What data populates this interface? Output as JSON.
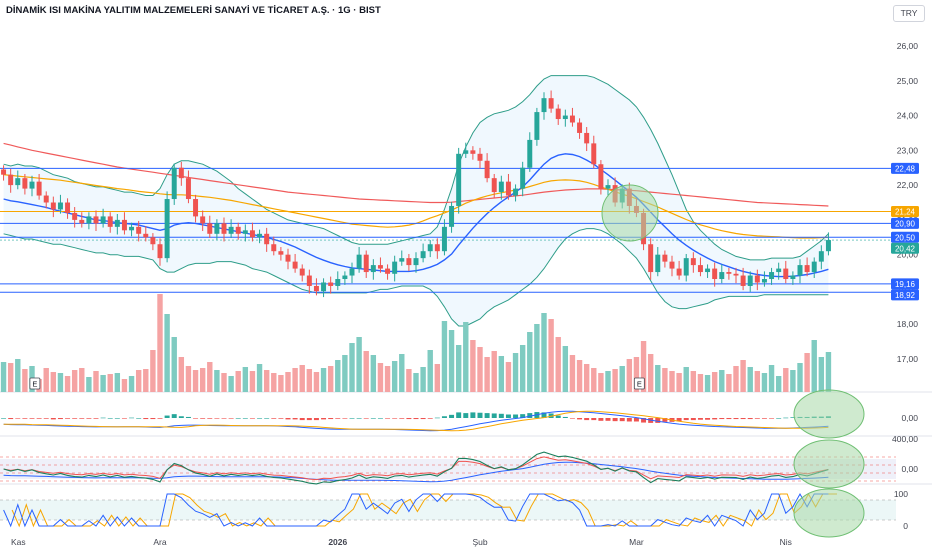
{
  "header": {
    "title": "DİNAMİK ISI MAKİNA YALITIM MALZEMELERİ SANAYİ VE TİCARET A.Ş. · 1G · BIST",
    "currency": "TRY"
  },
  "chart_data": [
    {
      "type": "candlestick",
      "title": "DİNAMİK ISI MAKİNA YALITIM MALZEMELERİ SANAYİ VE TİCARET A.Ş. · 1G · BIST",
      "currency": "TRY",
      "ylim": [
        16.5,
        26.5
      ],
      "y_ticks": [
        "26,00",
        "25,00",
        "24,00",
        "23,00",
        "22,00",
        "21,00",
        "20,00",
        "19,00",
        "18,00",
        "17,00"
      ],
      "y_tick_values": [
        26,
        25,
        24,
        23,
        22,
        21,
        20,
        19,
        18,
        17
      ],
      "x_labels": [
        "Kas",
        "Ara",
        "2026",
        "Şub",
        "Mar",
        "Nis"
      ],
      "horizontal_levels": [
        {
          "value": 22.48,
          "label": "22,48",
          "color": "#2962ff"
        },
        {
          "value": 21.24,
          "label": "21,24",
          "color": "#f7a600"
        },
        {
          "value": 20.9,
          "label": "20,90",
          "color": "#2962ff"
        },
        {
          "value": 20.5,
          "label": "20,50",
          "color": "#2962ff"
        },
        {
          "value": 20.42,
          "label": "20,42",
          "color": "#26a69a"
        },
        {
          "value": 19.16,
          "label": "19,16",
          "color": "#2962ff"
        },
        {
          "value": 18.92,
          "label": "18,92",
          "color": "#2962ff"
        }
      ],
      "event_markers": [
        "E",
        "E"
      ],
      "close": [
        22.3,
        22.0,
        22.2,
        21.9,
        22.1,
        21.7,
        21.5,
        21.3,
        21.5,
        21.2,
        21.0,
        20.9,
        21.1,
        20.9,
        21.1,
        20.8,
        21.0,
        20.7,
        20.8,
        20.6,
        20.5,
        20.3,
        19.9,
        21.6,
        22.5,
        22.2,
        21.6,
        21.1,
        20.9,
        20.6,
        20.9,
        20.6,
        20.8,
        20.6,
        20.7,
        20.5,
        20.6,
        20.3,
        20.1,
        20.0,
        19.8,
        19.6,
        19.4,
        19.1,
        18.95,
        19.2,
        19.1,
        19.3,
        19.4,
        19.6,
        20.0,
        19.5,
        19.7,
        19.6,
        19.45,
        19.8,
        19.9,
        19.7,
        19.9,
        20.1,
        20.3,
        20.1,
        20.8,
        21.4,
        22.9,
        23.0,
        22.9,
        22.7,
        22.2,
        21.8,
        22.1,
        21.7,
        21.9,
        22.5,
        23.3,
        24.1,
        24.5,
        24.2,
        23.9,
        24.0,
        23.8,
        23.5,
        23.2,
        22.6,
        21.9,
        22.0,
        21.5,
        21.9,
        21.4,
        21.2,
        20.3,
        19.5,
        20.0,
        19.8,
        19.6,
        19.4,
        19.9,
        19.7,
        19.5,
        19.6,
        19.3,
        19.5,
        19.45,
        19.4,
        19.1,
        19.4,
        19.2,
        19.3,
        19.5,
        19.6,
        19.3,
        19.4,
        19.7,
        19.5,
        19.8,
        20.1,
        20.42
      ],
      "volume": [
        0.3,
        0.29,
        0.33,
        0.23,
        0.26,
        0.13,
        0.24,
        0.2,
        0.19,
        0.16,
        0.22,
        0.24,
        0.15,
        0.21,
        0.17,
        0.18,
        0.19,
        0.13,
        0.16,
        0.22,
        0.23,
        0.42,
        0.98,
        0.78,
        0.55,
        0.35,
        0.26,
        0.22,
        0.24,
        0.3,
        0.22,
        0.19,
        0.16,
        0.21,
        0.25,
        0.21,
        0.28,
        0.22,
        0.19,
        0.17,
        0.2,
        0.24,
        0.27,
        0.23,
        0.2,
        0.24,
        0.26,
        0.32,
        0.37,
        0.49,
        0.55,
        0.41,
        0.37,
        0.29,
        0.26,
        0.31,
        0.38,
        0.23,
        0.19,
        0.25,
        0.42,
        0.28,
        0.71,
        0.62,
        0.47,
        0.7,
        0.52,
        0.45,
        0.35,
        0.41,
        0.36,
        0.3,
        0.39,
        0.47,
        0.6,
        0.68,
        0.79,
        0.73,
        0.55,
        0.46,
        0.37,
        0.32,
        0.28,
        0.24,
        0.19,
        0.21,
        0.23,
        0.26,
        0.33,
        0.35,
        0.51,
        0.38,
        0.27,
        0.24,
        0.21,
        0.19,
        0.25,
        0.21,
        0.18,
        0.17,
        0.2,
        0.22,
        0.18,
        0.26,
        0.32,
        0.25,
        0.21,
        0.19,
        0.27,
        0.16,
        0.24,
        0.22,
        0.29,
        0.39,
        0.52,
        0.35,
        0.4
      ],
      "ma_slow": [
        23.2,
        23.15,
        23.1,
        23.05,
        23.0,
        22.96,
        22.92,
        22.88,
        22.84,
        22.8,
        22.76,
        22.72,
        22.68,
        22.64,
        22.6,
        22.56,
        22.52,
        22.49,
        22.46,
        22.43,
        22.4,
        22.37,
        22.34,
        22.31,
        22.28,
        22.25,
        22.22,
        22.19,
        22.16,
        22.13,
        22.1,
        22.07,
        22.04,
        22.01,
        21.98,
        21.95,
        21.92,
        21.89,
        21.86,
        21.83,
        21.8,
        21.78,
        21.76,
        21.74,
        21.72,
        21.7,
        21.68,
        21.66,
        21.64,
        21.62,
        21.6,
        21.59,
        21.58,
        21.57,
        21.56,
        21.55,
        21.54,
        21.53,
        21.52,
        21.51,
        21.5,
        21.5,
        21.5,
        21.51,
        21.53,
        21.55,
        21.57,
        21.59,
        21.61,
        21.63,
        21.65,
        21.67,
        21.69,
        21.71,
        21.74,
        21.77,
        21.8,
        21.82,
        21.84,
        21.86,
        21.87,
        21.88,
        21.89,
        21.89,
        21.89,
        21.88,
        21.87,
        21.86,
        21.85,
        21.84,
        21.82,
        21.8,
        21.78,
        21.76,
        21.74,
        21.72,
        21.7,
        21.68,
        21.66,
        21.64,
        21.62,
        21.6,
        21.58,
        21.56,
        21.54,
        21.52,
        21.5,
        21.49,
        21.48,
        21.47,
        21.46,
        21.45,
        21.44,
        21.43,
        21.42,
        21.41,
        21.4
      ],
      "ma_mid": [
        22.3,
        22.28,
        22.26,
        22.24,
        22.22,
        22.2,
        22.18,
        22.16,
        22.14,
        22.11,
        22.08,
        22.05,
        22.02,
        21.99,
        21.96,
        21.93,
        21.9,
        21.88,
        21.85,
        21.82,
        21.8,
        21.78,
        21.75,
        21.73,
        21.72,
        21.72,
        21.71,
        21.69,
        21.67,
        21.65,
        21.62,
        21.59,
        21.56,
        21.52,
        21.48,
        21.44,
        21.4,
        21.36,
        21.32,
        21.28,
        21.24,
        21.2,
        21.16,
        21.12,
        21.08,
        21.04,
        21.0,
        20.96,
        20.92,
        20.88,
        20.86,
        20.84,
        20.82,
        20.8,
        20.79,
        20.8,
        20.82,
        20.85,
        20.9,
        20.97,
        21.05,
        21.12,
        21.2,
        21.28,
        21.38,
        21.48,
        21.56,
        21.63,
        21.69,
        21.74,
        21.78,
        21.82,
        21.86,
        21.9,
        21.96,
        22.02,
        22.08,
        22.12,
        22.14,
        22.15,
        22.14,
        22.12,
        22.08,
        22.02,
        21.95,
        21.88,
        21.81,
        21.74,
        21.68,
        21.61,
        21.53,
        21.45,
        21.37,
        21.28,
        21.19,
        21.1,
        21.01,
        20.93,
        20.86,
        20.8,
        20.74,
        20.69,
        20.65,
        20.61,
        20.58,
        20.56,
        20.54,
        20.53,
        20.52,
        20.51,
        20.5,
        20.49,
        20.48,
        20.48,
        20.48,
        20.49,
        20.5
      ],
      "ma_fast": [
        21.6,
        21.55,
        21.52,
        21.48,
        21.44,
        21.4,
        21.36,
        21.3,
        21.25,
        21.2,
        21.15,
        21.1,
        21.05,
        21.0,
        20.98,
        20.95,
        20.92,
        20.9,
        20.88,
        20.85,
        20.8,
        20.75,
        20.7,
        20.75,
        20.85,
        20.9,
        20.92,
        20.9,
        20.86,
        20.82,
        20.78,
        20.74,
        20.7,
        20.66,
        20.62,
        20.58,
        20.54,
        20.5,
        20.44,
        20.38,
        20.3,
        20.22,
        20.12,
        20.02,
        19.92,
        19.84,
        19.77,
        19.71,
        19.66,
        19.62,
        19.6,
        19.58,
        19.56,
        19.54,
        19.52,
        19.52,
        19.52,
        19.52,
        19.54,
        19.58,
        19.64,
        19.72,
        19.85,
        20.02,
        20.28,
        20.52,
        20.76,
        20.98,
        21.18,
        21.36,
        21.52,
        21.66,
        21.8,
        21.95,
        22.15,
        22.38,
        22.6,
        22.77,
        22.86,
        22.9,
        22.88,
        22.82,
        22.72,
        22.6,
        22.45,
        22.3,
        22.14,
        21.98,
        21.82,
        21.65,
        21.44,
        21.22,
        21.0,
        20.8,
        20.6,
        20.42,
        20.27,
        20.13,
        20.01,
        19.9,
        19.8,
        19.72,
        19.65,
        19.58,
        19.52,
        19.47,
        19.43,
        19.4,
        19.38,
        19.37,
        19.37,
        19.38,
        19.4,
        19.43,
        19.47,
        19.52,
        19.58
      ],
      "bb_upper": [
        22.6,
        22.55,
        22.6,
        22.55,
        22.55,
        22.5,
        22.4,
        22.3,
        22.25,
        22.2,
        22.1,
        22.05,
        22.0,
        21.95,
        21.95,
        21.9,
        21.85,
        21.8,
        21.8,
        21.75,
        21.7,
        21.7,
        21.9,
        22.3,
        22.6,
        22.7,
        22.7,
        22.65,
        22.6,
        22.5,
        22.4,
        22.25,
        22.1,
        21.9,
        21.75,
        21.6,
        21.45,
        21.3,
        21.2,
        21.1,
        21.0,
        20.95,
        20.9,
        20.85,
        20.8,
        20.75,
        20.65,
        20.55,
        20.45,
        20.35,
        20.3,
        20.3,
        20.3,
        20.3,
        20.3,
        20.35,
        20.4,
        20.45,
        20.5,
        20.55,
        20.6,
        20.8,
        21.3,
        21.9,
        22.6,
        23.1,
        23.5,
        23.8,
        23.95,
        24.05,
        24.1,
        24.15,
        24.25,
        24.4,
        24.6,
        24.85,
        25.05,
        25.15,
        25.15,
        25.15,
        25.15,
        25.15,
        25.15,
        25.1,
        25.0,
        24.9,
        24.75,
        24.6,
        24.45,
        24.25,
        23.95,
        23.6,
        23.2,
        22.75,
        22.3,
        21.8,
        21.3,
        20.95,
        20.7,
        20.5,
        20.3,
        20.15,
        20.05,
        19.95,
        19.9,
        19.85,
        19.85,
        19.85,
        19.9,
        19.9,
        19.9,
        19.9,
        19.95,
        20.1,
        20.25,
        20.4,
        20.6
      ],
      "bb_lower": [
        20.6,
        20.55,
        20.5,
        20.45,
        20.45,
        20.4,
        20.35,
        20.3,
        20.3,
        20.25,
        20.2,
        20.15,
        20.1,
        20.05,
        20.05,
        20.0,
        20.0,
        19.95,
        19.95,
        19.95,
        19.9,
        19.85,
        19.6,
        19.5,
        19.5,
        19.6,
        19.7,
        19.75,
        19.75,
        19.75,
        19.8,
        19.8,
        19.8,
        19.75,
        19.7,
        19.6,
        19.55,
        19.5,
        19.4,
        19.3,
        19.2,
        19.1,
        19.0,
        18.95,
        18.9,
        18.9,
        18.9,
        18.9,
        18.9,
        18.9,
        18.9,
        18.9,
        18.95,
        19.0,
        19.0,
        19.05,
        19.1,
        19.1,
        19.1,
        19.1,
        19.0,
        18.8,
        18.5,
        18.15,
        17.95,
        17.95,
        18.05,
        18.15,
        18.35,
        18.5,
        18.6,
        18.7,
        18.85,
        19.0,
        19.15,
        19.35,
        19.6,
        19.9,
        20.2,
        20.45,
        20.6,
        20.7,
        20.75,
        20.75,
        20.7,
        20.6,
        20.45,
        20.3,
        20.1,
        19.9,
        19.6,
        19.25,
        18.9,
        18.65,
        18.5,
        18.45,
        18.45,
        18.5,
        18.55,
        18.6,
        18.7,
        18.75,
        18.8,
        18.8,
        18.8,
        18.8,
        18.8,
        18.85,
        18.85,
        18.85,
        18.85,
        18.85,
        18.85,
        18.85,
        18.85,
        18.85,
        18.85
      ]
    },
    {
      "type": "histogram-line",
      "name": "momentum",
      "tick_labels": [
        "0,00"
      ],
      "tick_values": [
        0
      ]
    },
    {
      "type": "line",
      "name": "oscillator",
      "tick_labels": [
        "400,00",
        "0,00"
      ],
      "tick_values": [
        400,
        0
      ]
    },
    {
      "type": "line",
      "name": "stochastic",
      "tick_labels": [
        "100",
        "0"
      ],
      "tick_values": [
        100,
        0
      ]
    }
  ],
  "colors": {
    "up": "#26a69a",
    "down": "#ef5350",
    "up_volume": "#7fcbc1",
    "down_volume": "#f5a3a3",
    "blue": "#2962ff",
    "orange": "#f7a600",
    "red_ma": "#f05a5a",
    "teal": "#2e9d89",
    "bb_fill": "#e3f2fd",
    "highlight": "#a8d8a8"
  }
}
